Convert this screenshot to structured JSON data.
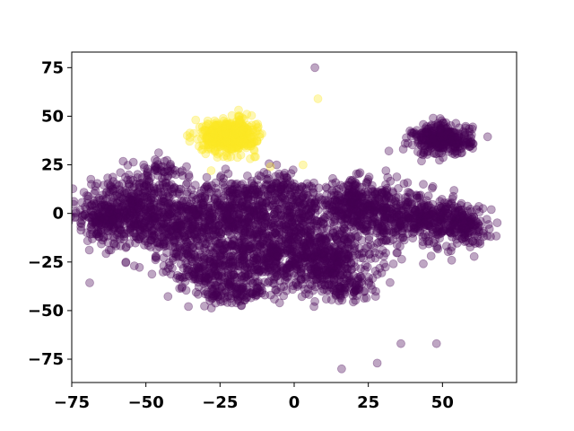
{
  "chart_data": {
    "type": "scatter",
    "title": "",
    "xlabel": "",
    "ylabel": "",
    "xlim": [
      -75,
      75
    ],
    "ylim": [
      -87,
      83
    ],
    "x_ticks": [
      -75,
      -50,
      -25,
      0,
      25,
      50
    ],
    "y_ticks": [
      -75,
      -50,
      -25,
      0,
      25,
      50,
      75
    ],
    "x_tick_labels": [
      "−75",
      "−50",
      "−25",
      "0",
      "25",
      "50"
    ],
    "y_tick_labels": [
      "−75",
      "−50",
      "−25",
      "0",
      "25",
      "50",
      "75"
    ],
    "grid": false,
    "legend": "none",
    "point_alpha": 0.35,
    "series": [
      {
        "color": "#440154",
        "clusters": [
          {
            "cx": -55,
            "cy": 2,
            "sx": 9,
            "sy": 9,
            "n": 500
          },
          {
            "cx": -38,
            "cy": -8,
            "sx": 9,
            "sy": 9,
            "n": 400
          },
          {
            "cx": -20,
            "cy": 2,
            "sx": 8,
            "sy": 8,
            "n": 380
          },
          {
            "cx": -12,
            "cy": -22,
            "sx": 9,
            "sy": 9,
            "n": 420
          },
          {
            "cx": -30,
            "cy": -30,
            "sx": 6,
            "sy": 5,
            "n": 160
          },
          {
            "cx": 2,
            "cy": -8,
            "sx": 7,
            "sy": 12,
            "n": 380
          },
          {
            "cx": 12,
            "cy": -25,
            "sx": 8,
            "sy": 8,
            "n": 380
          },
          {
            "cx": 20,
            "cy": 5,
            "sx": 6,
            "sy": 6,
            "n": 260
          },
          {
            "cx": 32,
            "cy": -2,
            "sx": 7,
            "sy": 7,
            "n": 300
          },
          {
            "cx": 48,
            "cy": -3,
            "sx": 5,
            "sy": 6,
            "n": 230
          },
          {
            "cx": 58,
            "cy": -6,
            "sx": 4,
            "sy": 5,
            "n": 140
          },
          {
            "cx": 50,
            "cy": 38,
            "sx": 5,
            "sy": 4,
            "n": 320
          },
          {
            "cx": -65,
            "cy": -5,
            "sx": 3,
            "sy": 4,
            "n": 80
          },
          {
            "cx": -5,
            "cy": 12,
            "sx": 6,
            "sy": 5,
            "n": 120
          },
          {
            "cx": -20,
            "cy": -42,
            "sx": 6,
            "sy": 3,
            "n": 90
          },
          {
            "cx": 18,
            "cy": -38,
            "sx": 5,
            "sy": 3,
            "n": 70
          },
          {
            "cx": -45,
            "cy": 22,
            "sx": 5,
            "sy": 3,
            "n": 50
          }
        ],
        "outliers": [
          [
            7,
            75
          ],
          [
            36,
            -67
          ],
          [
            48,
            -67
          ],
          [
            16,
            -80
          ],
          [
            28,
            -77
          ],
          [
            -44,
            -27
          ]
        ]
      },
      {
        "color": "#fde725",
        "clusters": [
          {
            "cx": -22,
            "cy": 40,
            "sx": 4.5,
            "sy": 4,
            "n": 520
          }
        ],
        "outliers": [
          [
            8,
            59
          ],
          [
            3,
            25
          ],
          [
            -28,
            22
          ],
          [
            -8,
            24
          ]
        ]
      }
    ]
  }
}
